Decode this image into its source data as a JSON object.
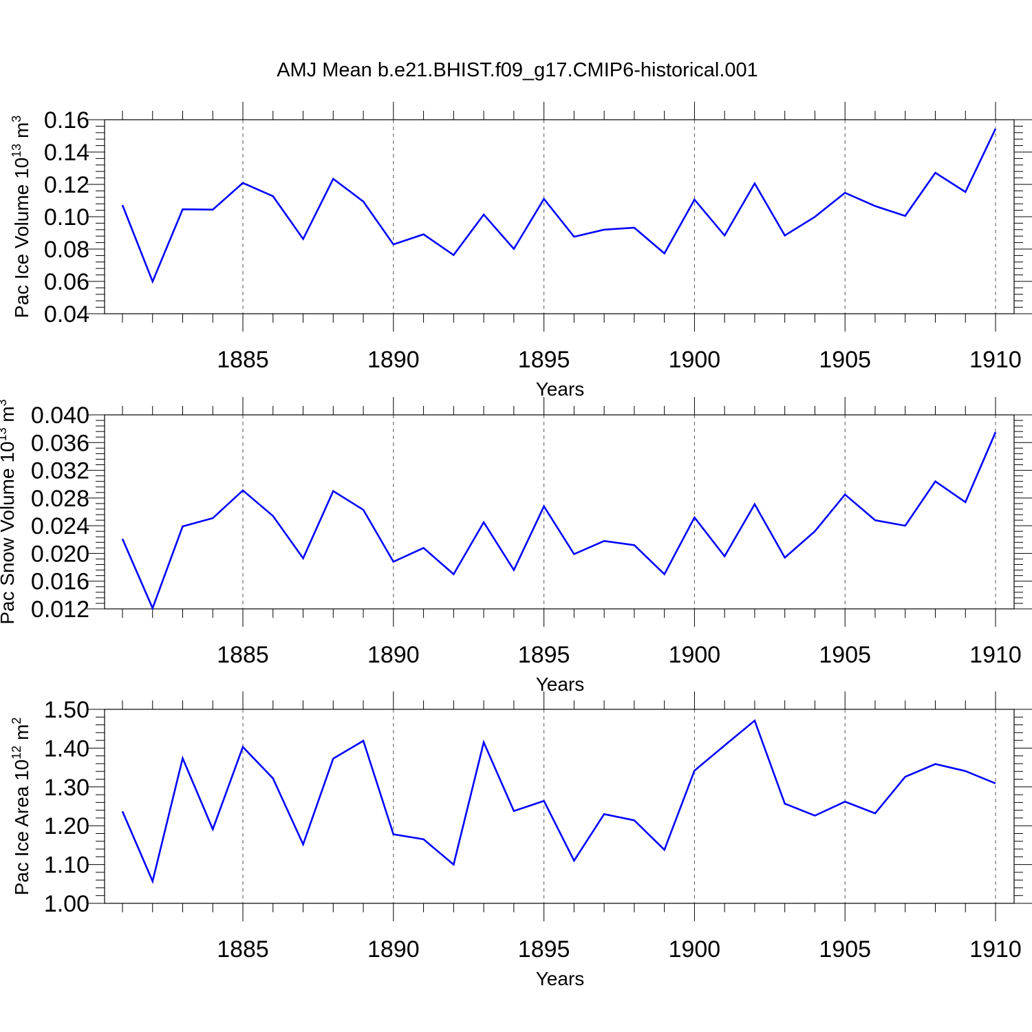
{
  "title": "AMJ Mean b.e21.BHIST.f09_g17.CMIP6-historical.001",
  "colors": {
    "series": "#0000ff",
    "axis": "#000000",
    "grid": "#555555",
    "background": "#ffffff"
  },
  "chart_data": [
    {
      "type": "line",
      "ylabel": "Pac Ice Volume 10",
      "ylabel_exp": "13",
      "ylabel_unit": " m",
      "ylabel_unit_exp": "3",
      "xlabel": "Years",
      "xlim": [
        1881,
        1910
      ],
      "ylim": [
        0.04,
        0.16
      ],
      "x_ticks": [
        1885,
        1890,
        1895,
        1900,
        1905,
        1910
      ],
      "y_ticks": [
        "0.04",
        "0.06",
        "0.08",
        "0.10",
        "0.12",
        "0.14",
        "0.16"
      ],
      "grid": "vertical dashed at major x ticks",
      "x": [
        1881,
        1882,
        1883,
        1884,
        1885,
        1886,
        1887,
        1888,
        1889,
        1890,
        1891,
        1892,
        1893,
        1894,
        1895,
        1896,
        1897,
        1898,
        1899,
        1900,
        1901,
        1902,
        1903,
        1904,
        1905,
        1906,
        1907,
        1908,
        1909,
        1910
      ],
      "values": [
        0.1072,
        0.0599,
        0.1046,
        0.1044,
        0.1209,
        0.1127,
        0.0862,
        0.1234,
        0.1094,
        0.0829,
        0.0891,
        0.0763,
        0.1013,
        0.0801,
        0.111,
        0.0876,
        0.092,
        0.0932,
        0.0773,
        0.1106,
        0.0884,
        0.1206,
        0.0884,
        0.0999,
        0.1148,
        0.1066,
        0.1005,
        0.1272,
        0.1153,
        0.1544
      ]
    },
    {
      "type": "line",
      "ylabel": "Pac Snow Volume 10",
      "ylabel_exp": "13",
      "ylabel_unit": " m",
      "ylabel_unit_exp": "3",
      "xlabel": "Years",
      "xlim": [
        1881,
        1910
      ],
      "ylim": [
        0.012,
        0.04
      ],
      "x_ticks": [
        1885,
        1890,
        1895,
        1900,
        1905,
        1910
      ],
      "y_ticks": [
        "0.012",
        "0.016",
        "0.020",
        "0.024",
        "0.028",
        "0.032",
        "0.036",
        "0.040"
      ],
      "grid": "vertical dashed at major x ticks",
      "x": [
        1881,
        1882,
        1883,
        1884,
        1885,
        1886,
        1887,
        1888,
        1889,
        1890,
        1891,
        1892,
        1893,
        1894,
        1895,
        1896,
        1897,
        1898,
        1899,
        1900,
        1901,
        1902,
        1903,
        1904,
        1905,
        1906,
        1907,
        1908,
        1909,
        1910
      ],
      "values": [
        0.0221,
        0.0121,
        0.0239,
        0.0251,
        0.0291,
        0.0254,
        0.0193,
        0.029,
        0.0263,
        0.0188,
        0.0208,
        0.017,
        0.0245,
        0.0176,
        0.0268,
        0.0199,
        0.0218,
        0.0212,
        0.017,
        0.0252,
        0.0196,
        0.0271,
        0.0194,
        0.0232,
        0.0285,
        0.0248,
        0.024,
        0.0304,
        0.0274,
        0.0375
      ]
    },
    {
      "type": "line",
      "ylabel": "Pac Ice Area 10",
      "ylabel_exp": "12",
      "ylabel_unit": " m",
      "ylabel_unit_exp": "2",
      "xlabel": "Years",
      "xlim": [
        1881,
        1910
      ],
      "ylim": [
        1.0,
        1.5
      ],
      "x_ticks": [
        1885,
        1890,
        1895,
        1900,
        1905,
        1910
      ],
      "y_ticks": [
        "1.00",
        "1.10",
        "1.20",
        "1.30",
        "1.40",
        "1.50"
      ],
      "grid": "vertical dashed at major x ticks",
      "x": [
        1881,
        1882,
        1883,
        1884,
        1885,
        1886,
        1887,
        1888,
        1889,
        1890,
        1891,
        1892,
        1893,
        1894,
        1895,
        1896,
        1897,
        1898,
        1899,
        1900,
        1901,
        1902,
        1903,
        1904,
        1905,
        1906,
        1907,
        1908,
        1909,
        1910
      ],
      "values": [
        1.237,
        1.057,
        1.374,
        1.191,
        1.403,
        1.322,
        1.152,
        1.373,
        1.419,
        1.178,
        1.165,
        1.1,
        1.415,
        1.238,
        1.264,
        1.11,
        1.23,
        1.214,
        1.138,
        1.342,
        1.407,
        1.471,
        1.257,
        1.226,
        1.262,
        1.232,
        1.326,
        1.359,
        1.341,
        1.309
      ]
    }
  ]
}
